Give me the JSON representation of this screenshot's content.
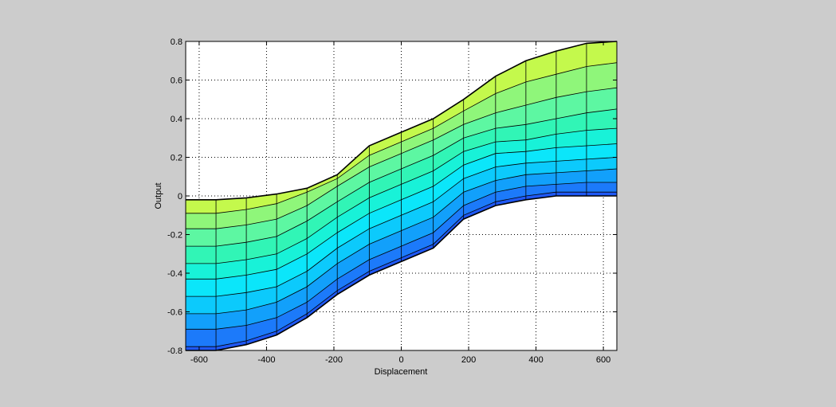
{
  "chart_data": {
    "type": "area",
    "title": "",
    "xlabel": "Displacement",
    "ylabel": "Output",
    "xlim": [
      -640,
      640
    ],
    "ylim": [
      -0.8,
      0.8
    ],
    "xticks": [
      -600,
      -400,
      -200,
      0,
      200,
      400,
      600
    ],
    "yticks": [
      -0.8,
      -0.6,
      -0.4,
      -0.2,
      0,
      0.2,
      0.4,
      0.6,
      0.8
    ],
    "xtick_labels": [
      "-600",
      "-400",
      "-200",
      "0",
      "200",
      "400",
      "600"
    ],
    "ytick_labels": [
      "-0.8",
      "-0.6",
      "-0.4",
      "-0.2",
      "0",
      "0.2",
      "0.4",
      "0.6",
      "0.8"
    ],
    "grid": true,
    "x": [
      -640,
      -550,
      -460,
      -370,
      -280,
      -190,
      -95,
      0,
      95,
      185,
      280,
      370,
      460,
      550,
      640
    ],
    "series": [
      {
        "values": [
          -0.8,
          -0.8,
          -0.77,
          -0.72,
          -0.63,
          -0.51,
          -0.41,
          -0.34,
          -0.27,
          -0.12,
          -0.05,
          -0.02,
          0.0,
          0.0,
          0.0
        ]
      },
      {
        "values": [
          -0.78,
          -0.78,
          -0.75,
          -0.7,
          -0.61,
          -0.49,
          -0.39,
          -0.32,
          -0.25,
          -0.1,
          -0.03,
          0.0,
          0.02,
          0.02,
          0.02
        ]
      },
      {
        "values": [
          -0.69,
          -0.69,
          -0.67,
          -0.63,
          -0.55,
          -0.43,
          -0.33,
          -0.26,
          -0.19,
          -0.05,
          0.02,
          0.05,
          0.06,
          0.07,
          0.07
        ]
      },
      {
        "values": [
          -0.61,
          -0.61,
          -0.59,
          -0.55,
          -0.47,
          -0.35,
          -0.25,
          -0.18,
          -0.11,
          0.02,
          0.08,
          0.11,
          0.12,
          0.13,
          0.14
        ]
      },
      {
        "values": [
          -0.52,
          -0.52,
          -0.5,
          -0.47,
          -0.39,
          -0.27,
          -0.17,
          -0.1,
          -0.03,
          0.09,
          0.15,
          0.17,
          0.18,
          0.19,
          0.2
        ]
      },
      {
        "values": [
          -0.43,
          -0.43,
          -0.41,
          -0.38,
          -0.3,
          -0.19,
          -0.09,
          -0.02,
          0.05,
          0.16,
          0.22,
          0.23,
          0.25,
          0.26,
          0.27
        ]
      },
      {
        "values": [
          -0.35,
          -0.35,
          -0.33,
          -0.3,
          -0.22,
          -0.11,
          -0.01,
          0.06,
          0.13,
          0.23,
          0.28,
          0.29,
          0.32,
          0.34,
          0.35
        ]
      },
      {
        "values": [
          -0.26,
          -0.26,
          -0.24,
          -0.21,
          -0.13,
          -0.03,
          0.07,
          0.14,
          0.21,
          0.3,
          0.35,
          0.37,
          0.4,
          0.43,
          0.45
        ]
      },
      {
        "values": [
          -0.17,
          -0.17,
          -0.15,
          -0.12,
          -0.05,
          0.05,
          0.15,
          0.22,
          0.29,
          0.37,
          0.43,
          0.47,
          0.51,
          0.54,
          0.56
        ]
      },
      {
        "values": [
          -0.09,
          -0.09,
          -0.07,
          -0.04,
          0.02,
          0.09,
          0.21,
          0.28,
          0.35,
          0.44,
          0.53,
          0.59,
          0.63,
          0.67,
          0.69
        ]
      },
      {
        "values": [
          -0.02,
          -0.02,
          -0.01,
          0.01,
          0.04,
          0.11,
          0.26,
          0.33,
          0.4,
          0.5,
          0.62,
          0.7,
          0.75,
          0.79,
          0.8
        ]
      }
    ],
    "face_colors": [
      "#1f58f4",
      "#1c7afa",
      "#12a0fb",
      "#0ccafc",
      "#0be6fa",
      "#18f2d8",
      "#31f5b6",
      "#5df7a2",
      "#8ff67a",
      "#c4f94c",
      "#f6f81f"
    ]
  }
}
